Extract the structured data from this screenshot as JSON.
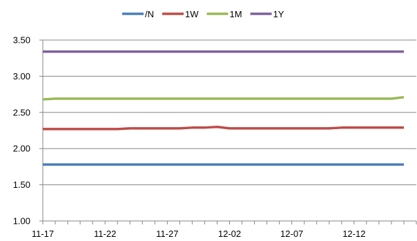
{
  "chart_data": {
    "type": "line",
    "title": "",
    "xlabel": "",
    "ylabel": "",
    "x": [
      "11-17",
      "11-18",
      "11-19",
      "11-20",
      "11-21",
      "11-22",
      "11-23",
      "11-24",
      "11-25",
      "11-26",
      "11-27",
      "11-28",
      "11-29",
      "11-30",
      "12-01",
      "12-02",
      "12-03",
      "12-04",
      "12-05",
      "12-06",
      "12-07",
      "12-08",
      "12-09",
      "12-10",
      "12-11",
      "12-12",
      "12-13",
      "12-14",
      "12-15",
      "12-16"
    ],
    "x_tick_labels": [
      "11-17",
      "11-22",
      "11-27",
      "12-02",
      "12-07",
      "12-12"
    ],
    "ylim": [
      1.0,
      3.5
    ],
    "y_tick_labels": [
      "1.00",
      "1.50",
      "2.00",
      "2.50",
      "3.00",
      "3.50"
    ],
    "grid": "horizontal",
    "legend_position": "top",
    "series": [
      {
        "name": "/N",
        "color": "#4a7ebb",
        "values": [
          1.78,
          1.78,
          1.78,
          1.78,
          1.78,
          1.78,
          1.78,
          1.78,
          1.78,
          1.78,
          1.78,
          1.78,
          1.78,
          1.78,
          1.78,
          1.78,
          1.78,
          1.78,
          1.78,
          1.78,
          1.78,
          1.78,
          1.78,
          1.78,
          1.78,
          1.78,
          1.78,
          1.78,
          1.78,
          1.78
        ]
      },
      {
        "name": "1W",
        "color": "#be4b48",
        "values": [
          2.27,
          2.27,
          2.27,
          2.27,
          2.27,
          2.27,
          2.27,
          2.28,
          2.28,
          2.28,
          2.28,
          2.28,
          2.29,
          2.29,
          2.3,
          2.28,
          2.28,
          2.28,
          2.28,
          2.28,
          2.28,
          2.28,
          2.28,
          2.28,
          2.29,
          2.29,
          2.29,
          2.29,
          2.29,
          2.29
        ]
      },
      {
        "name": "1M",
        "color": "#98b954",
        "values": [
          2.68,
          2.69,
          2.69,
          2.69,
          2.69,
          2.69,
          2.69,
          2.69,
          2.69,
          2.69,
          2.69,
          2.69,
          2.69,
          2.69,
          2.69,
          2.69,
          2.69,
          2.69,
          2.69,
          2.69,
          2.69,
          2.69,
          2.69,
          2.69,
          2.69,
          2.69,
          2.69,
          2.69,
          2.69,
          2.71
        ]
      },
      {
        "name": "1Y",
        "color": "#7d60a0",
        "values": [
          3.34,
          3.34,
          3.34,
          3.34,
          3.34,
          3.34,
          3.34,
          3.34,
          3.34,
          3.34,
          3.34,
          3.34,
          3.34,
          3.34,
          3.34,
          3.34,
          3.34,
          3.34,
          3.34,
          3.34,
          3.34,
          3.34,
          3.34,
          3.34,
          3.34,
          3.34,
          3.34,
          3.34,
          3.34,
          3.34
        ]
      }
    ]
  }
}
